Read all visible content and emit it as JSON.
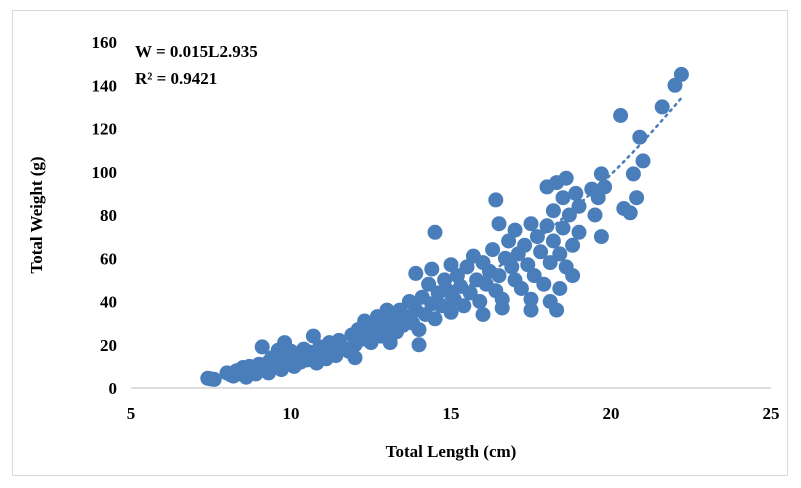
{
  "chart_data": {
    "type": "scatter",
    "xlabel": "Total Length (cm)",
    "ylabel": "Total Weight (g)",
    "xlim": [
      5,
      25
    ],
    "ylim": [
      0,
      160
    ],
    "x_ticks": [
      5,
      10,
      15,
      20,
      25
    ],
    "y_ticks": [
      0,
      20,
      40,
      60,
      80,
      100,
      120,
      140,
      160
    ],
    "grid": false,
    "legend": "none",
    "marker_color": "#4a7ebb",
    "trendline": {
      "type": "power",
      "style": "dotted",
      "color": "#4a7ebb",
      "a": 0.015,
      "b": 2.935,
      "x_range": [
        7.4,
        22.2
      ]
    },
    "annotations": {
      "equation": "W = 0.015L2.935",
      "r_squared": "R² = 0.9421"
    },
    "points": [
      [
        7.4,
        4.5
      ],
      [
        7.5,
        4.2
      ],
      [
        7.6,
        4.0
      ],
      [
        8.0,
        7.0
      ],
      [
        8.1,
        6.2
      ],
      [
        8.2,
        5.5
      ],
      [
        8.3,
        8.0
      ],
      [
        8.4,
        6.5
      ],
      [
        8.5,
        9.5
      ],
      [
        8.5,
        7.5
      ],
      [
        8.6,
        5.0
      ],
      [
        8.7,
        10.0
      ],
      [
        8.8,
        8.5
      ],
      [
        8.9,
        6.5
      ],
      [
        9.0,
        11.0
      ],
      [
        9.0,
        8.0
      ],
      [
        9.1,
        19.0
      ],
      [
        9.2,
        9.5
      ],
      [
        9.3,
        12.0
      ],
      [
        9.3,
        7.0
      ],
      [
        9.4,
        14.0
      ],
      [
        9.5,
        10.5
      ],
      [
        9.6,
        17.5
      ],
      [
        9.6,
        12.5
      ],
      [
        9.7,
        8.5
      ],
      [
        9.8,
        21.0
      ],
      [
        9.8,
        15.0
      ],
      [
        9.9,
        11.5
      ],
      [
        10.0,
        13.5
      ],
      [
        10.0,
        17.0
      ],
      [
        10.1,
        10.0
      ],
      [
        10.2,
        15.5
      ],
      [
        10.3,
        12.0
      ],
      [
        10.4,
        18.0
      ],
      [
        10.5,
        13.0
      ],
      [
        10.6,
        16.5
      ],
      [
        10.7,
        24.0
      ],
      [
        10.7,
        14.0
      ],
      [
        10.8,
        11.5
      ],
      [
        10.9,
        19.0
      ],
      [
        11.0,
        16.0
      ],
      [
        11.1,
        13.5
      ],
      [
        11.2,
        21.0
      ],
      [
        11.3,
        18.0
      ],
      [
        11.4,
        15.0
      ],
      [
        11.5,
        22.0
      ],
      [
        11.6,
        19.0
      ],
      [
        11.8,
        17.0
      ],
      [
        11.9,
        24.5
      ],
      [
        12.0,
        20.0
      ],
      [
        12.0,
        14.0
      ],
      [
        12.1,
        27.0
      ],
      [
        12.2,
        22.5
      ],
      [
        12.3,
        31.0
      ],
      [
        12.4,
        25.0
      ],
      [
        12.5,
        21.0
      ],
      [
        12.6,
        28.0
      ],
      [
        12.7,
        33.0
      ],
      [
        12.8,
        24.0
      ],
      [
        12.9,
        30.0
      ],
      [
        13.0,
        36.0
      ],
      [
        13.0,
        27.0
      ],
      [
        13.1,
        21.0
      ],
      [
        13.2,
        32.0
      ],
      [
        13.3,
        26.0
      ],
      [
        13.4,
        36.0
      ],
      [
        13.5,
        29.0
      ],
      [
        13.6,
        33.0
      ],
      [
        13.7,
        40.0
      ],
      [
        13.8,
        30.0
      ],
      [
        13.9,
        53.0
      ],
      [
        13.9,
        36.0
      ],
      [
        14.0,
        27.0
      ],
      [
        14.0,
        20.0
      ],
      [
        14.1,
        42.0
      ],
      [
        14.2,
        34.0
      ],
      [
        14.3,
        48.0
      ],
      [
        14.4,
        39.0
      ],
      [
        14.4,
        55.0
      ],
      [
        14.5,
        32.0
      ],
      [
        14.5,
        72.0
      ],
      [
        14.6,
        44.0
      ],
      [
        14.7,
        38.0
      ],
      [
        14.8,
        50.0
      ],
      [
        14.9,
        45.0
      ],
      [
        15.0,
        35.0
      ],
      [
        15.0,
        57.0
      ],
      [
        15.1,
        41.0
      ],
      [
        15.2,
        52.0
      ],
      [
        15.3,
        47.0
      ],
      [
        15.4,
        38.0
      ],
      [
        15.5,
        56.0
      ],
      [
        15.6,
        44.0
      ],
      [
        15.7,
        61.0
      ],
      [
        15.8,
        50.0
      ],
      [
        15.9,
        40.0
      ],
      [
        16.0,
        58.0
      ],
      [
        16.0,
        34.0
      ],
      [
        16.1,
        48.0
      ],
      [
        16.2,
        54.0
      ],
      [
        16.3,
        64.0
      ],
      [
        16.4,
        45.0
      ],
      [
        16.4,
        87.0
      ],
      [
        16.5,
        76.0
      ],
      [
        16.5,
        52.0
      ],
      [
        16.6,
        41.0
      ],
      [
        16.6,
        37.0
      ],
      [
        16.7,
        60.0
      ],
      [
        16.8,
        68.0
      ],
      [
        16.9,
        56.0
      ],
      [
        17.0,
        50.0
      ],
      [
        17.0,
        73.0
      ],
      [
        17.1,
        62.0
      ],
      [
        17.2,
        46.0
      ],
      [
        17.3,
        66.0
      ],
      [
        17.4,
        57.0
      ],
      [
        17.5,
        76.0
      ],
      [
        17.5,
        41.0
      ],
      [
        17.5,
        36.0
      ],
      [
        17.6,
        52.0
      ],
      [
        17.7,
        70.0
      ],
      [
        17.8,
        63.0
      ],
      [
        17.9,
        48.0
      ],
      [
        18.0,
        75.0
      ],
      [
        18.0,
        93.0
      ],
      [
        18.1,
        58.0
      ],
      [
        18.1,
        40.0
      ],
      [
        18.2,
        82.0
      ],
      [
        18.2,
        68.0
      ],
      [
        18.3,
        95.0
      ],
      [
        18.3,
        36.0
      ],
      [
        18.4,
        62.0
      ],
      [
        18.4,
        46.0
      ],
      [
        18.5,
        88.0
      ],
      [
        18.5,
        74.0
      ],
      [
        18.6,
        56.0
      ],
      [
        18.6,
        97.0
      ],
      [
        18.7,
        80.0
      ],
      [
        18.8,
        66.0
      ],
      [
        18.8,
        52.0
      ],
      [
        18.9,
        90.0
      ],
      [
        19.0,
        72.0
      ],
      [
        19.0,
        84.0
      ],
      [
        19.4,
        92.0
      ],
      [
        19.5,
        80.0
      ],
      [
        19.6,
        88.0
      ],
      [
        19.7,
        99.0
      ],
      [
        19.7,
        70.0
      ],
      [
        19.8,
        93.0
      ],
      [
        20.3,
        126.0
      ],
      [
        20.4,
        83.0
      ],
      [
        20.6,
        81.0
      ],
      [
        20.7,
        99.0
      ],
      [
        20.8,
        88.0
      ],
      [
        20.9,
        116.0
      ],
      [
        21.0,
        105.0
      ],
      [
        21.6,
        130.0
      ],
      [
        22.0,
        140.0
      ],
      [
        22.2,
        145.0
      ]
    ]
  }
}
